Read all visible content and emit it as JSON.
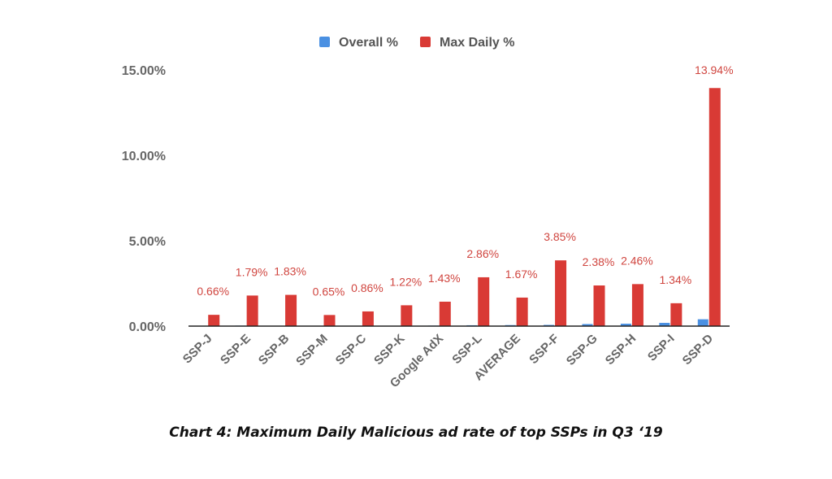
{
  "chart_data": {
    "type": "bar",
    "title": "",
    "caption": "Chart 4: Maximum Daily Malicious ad rate of top SSPs in Q3 ‘19",
    "legend_position": "top",
    "categories": [
      "SSP-J",
      "SSP-E",
      "SSP-B",
      "SSP-M",
      "SSP-C",
      "SSP-K",
      "Google AdX",
      "SSP-L",
      "AVERAGE",
      "SSP-F",
      "SSP-G",
      "SSP-H",
      "SSP-I",
      "SSP-D"
    ],
    "series": [
      {
        "name": "Overall %",
        "color": "#4a90e2",
        "values": [
          0.01,
          0.03,
          0.02,
          0.01,
          0.02,
          0.02,
          0.03,
          0.05,
          0.06,
          0.07,
          0.12,
          0.14,
          0.19,
          0.4
        ],
        "labels": []
      },
      {
        "name": "Max Daily %",
        "color": "#d93a35",
        "values": [
          0.66,
          1.79,
          1.83,
          0.65,
          0.86,
          1.22,
          1.43,
          2.86,
          1.67,
          3.85,
          2.38,
          2.46,
          1.34,
          13.94
        ],
        "labels": [
          "0.66%",
          "1.79%",
          "1.83%",
          "0.65%",
          "0.86%",
          "1.22%",
          "1.43%",
          "2.86%",
          "1.67%",
          "3.85%",
          "2.38%",
          "2.46%",
          "1.34%",
          "13.94%"
        ]
      }
    ],
    "xlabel": "",
    "ylabel": "",
    "ylim": [
      0,
      15
    ],
    "yticks": [
      0,
      5,
      10,
      15
    ],
    "ytick_labels": [
      "0.00%",
      "5.00%",
      "10.00%",
      "15.00%"
    ],
    "gridlines": false,
    "colors": {
      "axis": "#222222",
      "tick_text": "#666666",
      "label_text": "#d0453f"
    }
  }
}
